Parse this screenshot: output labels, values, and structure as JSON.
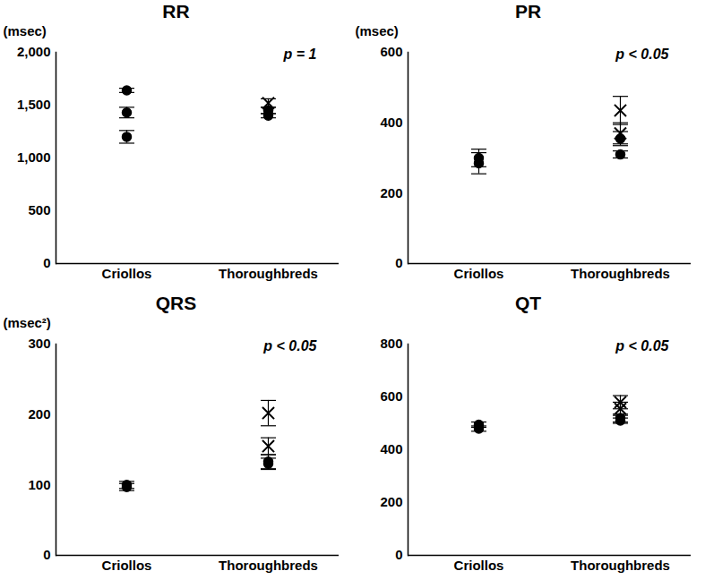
{
  "chart_data": [
    {
      "type": "scatter",
      "title": "RR",
      "y_label": "(msec)",
      "annotation": "p = 1",
      "categories": [
        "Criollos",
        "Thoroughbreds"
      ],
      "color": "#000000",
      "ylim": [
        0,
        2000
      ],
      "yticks": [
        0,
        500,
        1000,
        1500,
        2000
      ],
      "series": [
        {
          "marker": "circle",
          "x": [
            "Criollos",
            "Criollos",
            "Criollos",
            "Thoroughbreds",
            "Thoroughbreds"
          ],
          "values": [
            1640,
            1430,
            1200,
            1450,
            1400
          ],
          "errors": [
            20,
            50,
            60,
            30,
            20
          ]
        },
        {
          "marker": "cross",
          "x": [
            "Thoroughbreds"
          ],
          "values": [
            1520
          ],
          "errors": [
            40
          ]
        }
      ]
    },
    {
      "type": "scatter",
      "title": "PR",
      "y_label": "(msec)",
      "annotation": "p < 0.05",
      "categories": [
        "Criollos",
        "Thoroughbreds"
      ],
      "color": "#000000",
      "ylim": [
        0,
        600
      ],
      "yticks": [
        0,
        200,
        400,
        600
      ],
      "series": [
        {
          "marker": "circle",
          "x": [
            "Criollos",
            "Criollos",
            "Thoroughbreds",
            "Thoroughbreds"
          ],
          "values": [
            300,
            285,
            355,
            310
          ],
          "errors": [
            25,
            30,
            20,
            10
          ]
        },
        {
          "marker": "cross",
          "x": [
            "Thoroughbreds",
            "Thoroughbreds"
          ],
          "values": [
            435,
            370
          ],
          "errors": [
            40,
            30
          ]
        }
      ]
    },
    {
      "type": "scatter",
      "title": "QRS",
      "y_label": "(msec²)",
      "annotation": "p < 0.05",
      "categories": [
        "Criollos",
        "Thoroughbreds"
      ],
      "color": "#000000",
      "ylim": [
        0,
        300
      ],
      "yticks": [
        0,
        100,
        200,
        300
      ],
      "series": [
        {
          "marker": "circle",
          "x": [
            "Criollos",
            "Criollos",
            "Thoroughbreds",
            "Thoroughbreds"
          ],
          "values": [
            100,
            97,
            133,
            130
          ],
          "errors": [
            5,
            5,
            10,
            8
          ]
        },
        {
          "marker": "cross",
          "x": [
            "Thoroughbreds",
            "Thoroughbreds"
          ],
          "values": [
            202,
            155
          ],
          "errors": [
            18,
            12
          ]
        }
      ]
    },
    {
      "type": "scatter",
      "title": "QT",
      "annotation": "p < 0.05",
      "categories": [
        "Criollos",
        "Thoroughbreds"
      ],
      "color": "#000000",
      "ylim": [
        0,
        800
      ],
      "yticks": [
        0,
        200,
        400,
        600,
        800
      ],
      "series": [
        {
          "marker": "circle",
          "x": [
            "Criollos",
            "Criollos",
            "Thoroughbreds",
            "Thoroughbreds"
          ],
          "values": [
            495,
            480,
            520,
            510
          ],
          "errors": [
            10,
            10,
            15,
            10
          ]
        },
        {
          "marker": "cross",
          "x": [
            "Thoroughbreds",
            "Thoroughbreds"
          ],
          "values": [
            580,
            555
          ],
          "errors": [
            25,
            25
          ]
        }
      ]
    }
  ]
}
